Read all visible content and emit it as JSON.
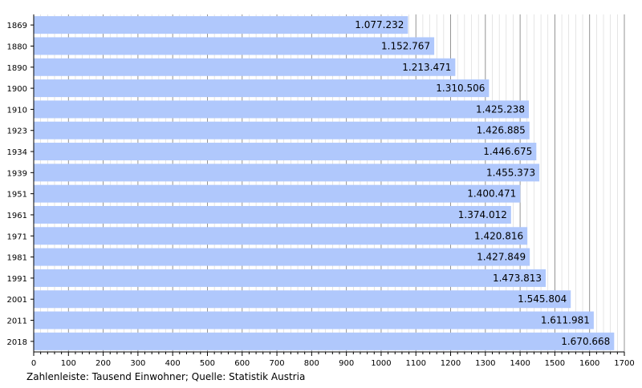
{
  "chart_data": {
    "type": "bar",
    "orientation": "horizontal",
    "categories": [
      "1869",
      "1880",
      "1890",
      "1900",
      "1910",
      "1923",
      "1934",
      "1939",
      "1951",
      "1961",
      "1971",
      "1981",
      "1991",
      "2001",
      "2011",
      "2018"
    ],
    "values": [
      1077.232,
      1152.767,
      1213.471,
      1310.506,
      1425.238,
      1426.885,
      1446.675,
      1455.373,
      1400.471,
      1374.012,
      1420.816,
      1427.849,
      1473.813,
      1545.804,
      1611.981,
      1670.668
    ],
    "value_labels": [
      "1.077.232",
      "1.152.767",
      "1.213.471",
      "1.310.506",
      "1.425.238",
      "1.426.885",
      "1.446.675",
      "1.455.373",
      "1.400.471",
      "1.374.012",
      "1.420.816",
      "1.427.849",
      "1.473.813",
      "1.545.804",
      "1.611.981",
      "1.670.668"
    ],
    "xlim": [
      0,
      1700
    ],
    "xticks": [
      0,
      100,
      200,
      300,
      400,
      500,
      600,
      700,
      800,
      900,
      1000,
      1100,
      1200,
      1300,
      1400,
      1500,
      1600,
      1700
    ],
    "grid": true,
    "bar_color": "#b0c8fc",
    "grid_color": "#888888",
    "caption": "Zahlenleiste: Tausend Einwohner; Quelle: Statistik Austria"
  }
}
